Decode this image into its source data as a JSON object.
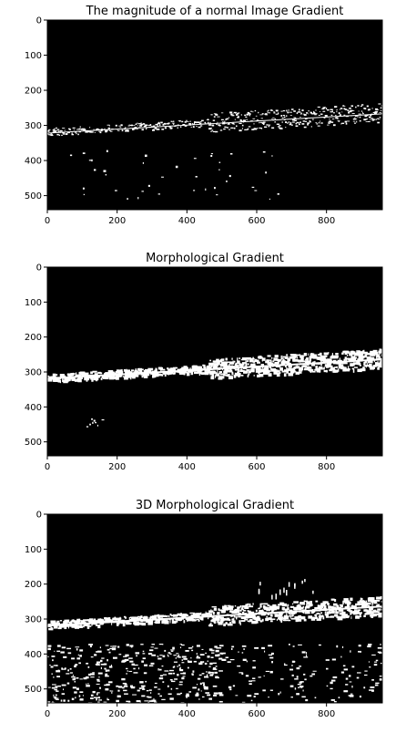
{
  "chart_data": [
    {
      "type": "heatmap",
      "title": "The magnitude of a normal Image Gradient",
      "xlabel": "",
      "ylabel": "",
      "xlim": [
        0,
        960
      ],
      "ylim": [
        540,
        0
      ],
      "xticks": [
        0,
        200,
        400,
        600,
        800
      ],
      "yticks": [
        0,
        100,
        200,
        300,
        400,
        500
      ],
      "grid": false,
      "colormap": "gray",
      "background": "#000000",
      "foreground": "#ffffff",
      "content": "binary edge map, mostly black with sparse white edge pixels concentrated around y 260-330 and a few scattered points below"
    },
    {
      "type": "heatmap",
      "title": "Morphological Gradient",
      "xlabel": "",
      "ylabel": "",
      "xlim": [
        0,
        960
      ],
      "ylim": [
        540,
        0
      ],
      "xticks": [
        0,
        200,
        400,
        600,
        800
      ],
      "yticks": [
        0,
        100,
        200,
        300,
        400,
        500
      ],
      "grid": false,
      "colormap": "gray",
      "background": "#000000",
      "foreground": "#ffffff",
      "content": "binary edge map with a thicker white band around y 250-330 rising toward the right"
    },
    {
      "type": "heatmap",
      "title": "3D Morphological Gradient",
      "xlabel": "",
      "ylabel": "",
      "xlim": [
        0,
        960
      ],
      "ylim": [
        540,
        0
      ],
      "xticks": [
        0,
        200,
        400,
        600,
        800
      ],
      "yticks": [
        0,
        100,
        200,
        300,
        400,
        500
      ],
      "grid": false,
      "colormap": "gray",
      "background": "#000000",
      "foreground": "#ffffff",
      "content": "binary edge map with a bright band around y 250-330 plus dense scattered white speckles in the lower region y 380-540"
    }
  ]
}
